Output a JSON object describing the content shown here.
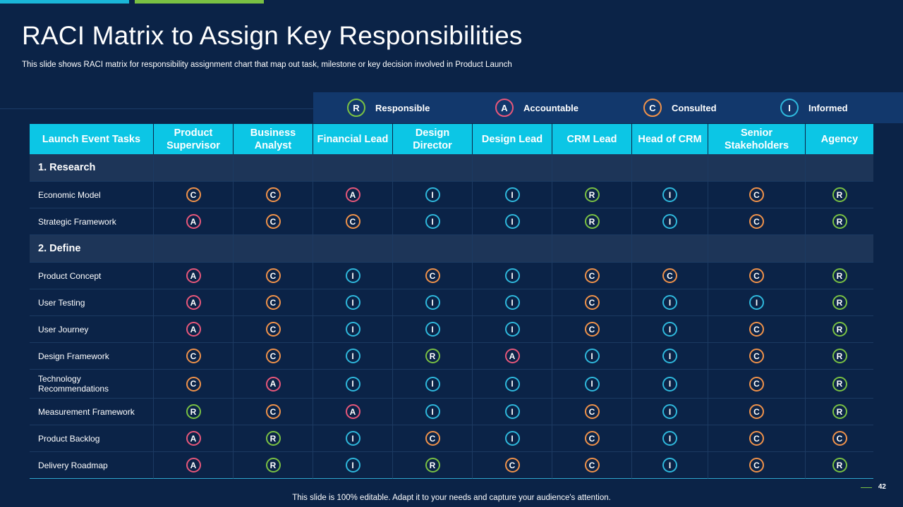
{
  "title": "RACI Matrix to Assign Key Responsibilities",
  "subtitle": "This slide shows RACI matrix for responsibility assignment chart that map out task, milestone or key decision involved in Product Launch",
  "legend": [
    {
      "letter": "R",
      "label": "Responsible"
    },
    {
      "letter": "A",
      "label": "Accountable"
    },
    {
      "letter": "C",
      "label": "Consulted"
    },
    {
      "letter": "I",
      "label": "Informed"
    }
  ],
  "colors": {
    "R": "#7ac143",
    "A": "#e8577a",
    "C": "#f0924a",
    "I": "#2fb8dc",
    "header": "#0cc6e5",
    "background": "#0b2347"
  },
  "columns": [
    "Launch Event Tasks",
    "Product Supervisor",
    "Business Analyst",
    "Financial Lead",
    "Design Director",
    "Design Lead",
    "CRM Lead",
    "Head of CRM",
    "Senior Stakeholders",
    "Agency"
  ],
  "rows": [
    {
      "section": "1. Research"
    },
    {
      "task": "Economic Model",
      "values": [
        "C",
        "C",
        "A",
        "I",
        "I",
        "R",
        "I",
        "C",
        "R"
      ]
    },
    {
      "task": "Strategic Framework",
      "values": [
        "A",
        "C",
        "C",
        "I",
        "I",
        "R",
        "I",
        "C",
        "R"
      ]
    },
    {
      "section": "2. Define"
    },
    {
      "task": "Product Concept",
      "values": [
        "A",
        "C",
        "I",
        "C",
        "I",
        "C",
        "C",
        "C",
        "R"
      ]
    },
    {
      "task": "User Testing",
      "values": [
        "A",
        "C",
        "I",
        "I",
        "I",
        "C",
        "I",
        "I",
        "R"
      ]
    },
    {
      "task": "User Journey",
      "values": [
        "A",
        "C",
        "I",
        "I",
        "I",
        "C",
        "I",
        "C",
        "R"
      ]
    },
    {
      "task": "Design Framework",
      "values": [
        "C",
        "C",
        "I",
        "R",
        "A",
        "I",
        "I",
        "C",
        "R"
      ]
    },
    {
      "task": "Technology Recommendations",
      "values": [
        "C",
        "A",
        "I",
        "I",
        "I",
        "I",
        "I",
        "C",
        "R"
      ]
    },
    {
      "task": "Measurement Framework",
      "values": [
        "R",
        "C",
        "A",
        "I",
        "I",
        "C",
        "I",
        "C",
        "R"
      ]
    },
    {
      "task": "Product Backlog",
      "values": [
        "A",
        "R",
        "I",
        "C",
        "I",
        "C",
        "I",
        "C",
        "C"
      ]
    },
    {
      "task": "Delivery Roadmap",
      "values": [
        "A",
        "R",
        "I",
        "R",
        "C",
        "C",
        "I",
        "C",
        "R"
      ]
    }
  ],
  "footer": "This slide is 100% editable. Adapt it to your needs and capture your audience's attention.",
  "page_number": "42"
}
